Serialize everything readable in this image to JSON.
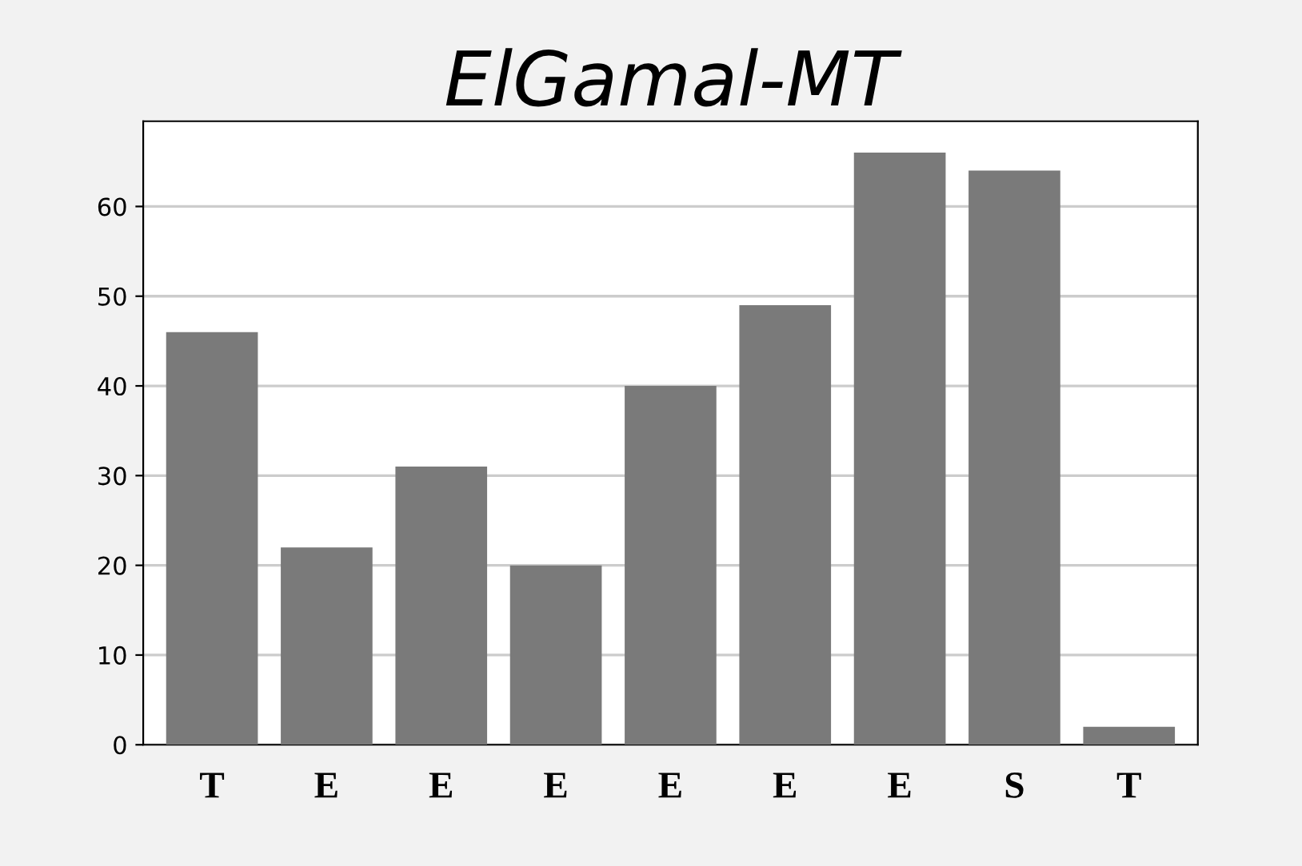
{
  "chart_data": {
    "type": "bar",
    "title": "ElGamal-MT",
    "categories": [
      "T",
      "E",
      "E",
      "E",
      "E",
      "E",
      "E",
      "S",
      "T"
    ],
    "values": [
      46,
      22,
      31,
      20,
      40,
      49,
      66,
      64,
      2
    ],
    "color": "#7a7a7a",
    "ylim": [
      0,
      69.5
    ],
    "yticks": [
      0,
      10,
      20,
      30,
      40,
      50,
      60
    ],
    "grid": "y"
  }
}
